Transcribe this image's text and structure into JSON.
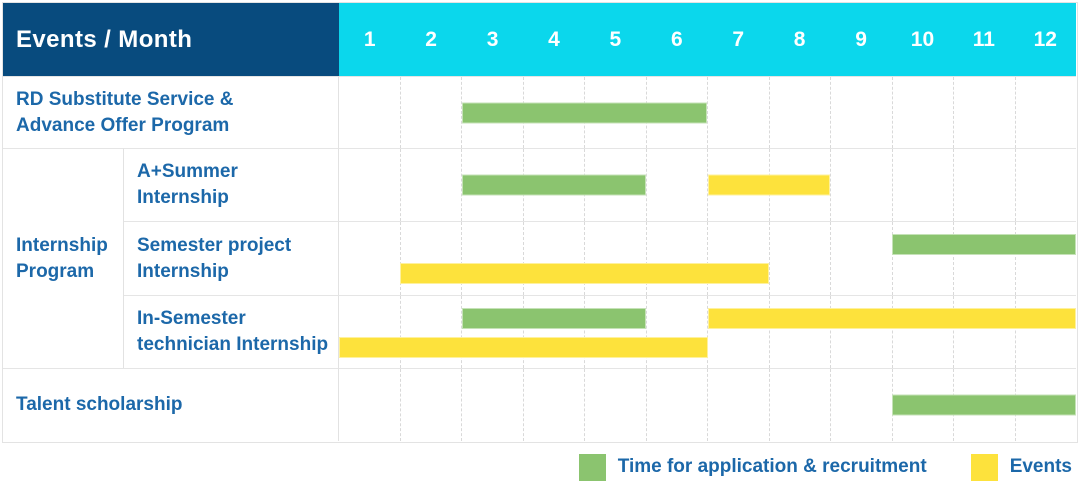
{
  "header": {
    "title": "Events / Month",
    "months": [
      "1",
      "2",
      "3",
      "4",
      "5",
      "6",
      "7",
      "8",
      "9",
      "10",
      "11",
      "12"
    ]
  },
  "row_labels": {
    "rd": "RD Substitute Service &\nAdvance Offer Program",
    "group": "Internship\nProgram",
    "a_summer": "A+Summer\nInternship",
    "semester_project": "Semester project\nInternship",
    "in_semester": "In-Semester\ntechnician Internship",
    "talent": "Talent scholarship"
  },
  "colors": {
    "header_bg": "#084b7e",
    "months_bg": "#0bd7ec",
    "label_blue": "#1c68a9",
    "row_line": "#e5e5e5",
    "green": "#8bc46f",
    "yellow": "#fde23c"
  },
  "chart_data": {
    "type": "bar",
    "subtype": "gantt",
    "title": "Events / Month",
    "x_unit": "month",
    "x_range": [
      1,
      12
    ],
    "grid": true,
    "legend_position": "bottom-right",
    "series": [
      {
        "id": "application_recruitment",
        "label": "Time for application & recruitment",
        "color": "#8bc46f"
      },
      {
        "id": "events",
        "label": "Events",
        "color": "#fde23c"
      }
    ],
    "rows": [
      {
        "label": "RD Substitute Service & Advance Offer Program",
        "group": null,
        "bars": [
          {
            "series": "application_recruitment",
            "start_month": 3,
            "end_month": 6,
            "band": "center"
          }
        ]
      },
      {
        "label": "A+Summer Internship",
        "group": "Internship Program",
        "bars": [
          {
            "series": "application_recruitment",
            "start_month": 3,
            "end_month": 5,
            "band": "center"
          },
          {
            "series": "events",
            "start_month": 7,
            "end_month": 8,
            "band": "center"
          }
        ]
      },
      {
        "label": "Semester project Internship",
        "group": "Internship Program",
        "bars": [
          {
            "series": "application_recruitment",
            "start_month": 10,
            "end_month": 12,
            "band": "top"
          },
          {
            "series": "events",
            "start_month": 2,
            "end_month": 7,
            "band": "bottom"
          }
        ]
      },
      {
        "label": "In-Semester technician Internship",
        "group": "Internship Program",
        "bars": [
          {
            "series": "application_recruitment",
            "start_month": 3,
            "end_month": 5,
            "band": "top"
          },
          {
            "series": "events",
            "start_month": 7,
            "end_month": 12,
            "band": "top"
          },
          {
            "series": "events",
            "start_month": 1,
            "end_month": 6,
            "band": "bottom"
          }
        ]
      },
      {
        "label": "Talent scholarship",
        "group": null,
        "bars": [
          {
            "series": "application_recruitment",
            "start_month": 10,
            "end_month": 12,
            "band": "center"
          }
        ]
      }
    ]
  }
}
